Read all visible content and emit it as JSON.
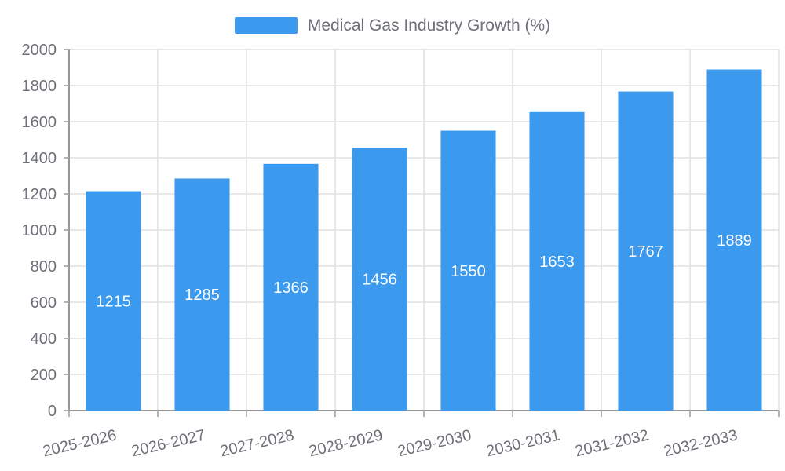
{
  "chart_data": {
    "type": "bar",
    "title": "Medical Gas Industry Growth (%)",
    "legend": {
      "position": "top",
      "entries": [
        "Medical Gas Industry Growth (%)"
      ]
    },
    "categories": [
      "2025-2026",
      "2026-2027",
      "2027-2028",
      "2028-2029",
      "2029-2030",
      "2030-2031",
      "2031-2032",
      "2032-2033"
    ],
    "values": [
      1215,
      1285,
      1366,
      1456,
      1550,
      1653,
      1767,
      1889
    ],
    "xlabel": "",
    "ylabel": "",
    "ylim": [
      0,
      2000
    ],
    "ytick_step": 200,
    "grid": true,
    "colors": {
      "bar": "#3B99EE",
      "bar_value_label": "#FFFFFF",
      "axis_text": "#6E7079",
      "axis_line": "#999999",
      "tick_line": "#B3B3B3",
      "grid_line": "#E0E0E0",
      "background": "#FFFFFF"
    }
  }
}
